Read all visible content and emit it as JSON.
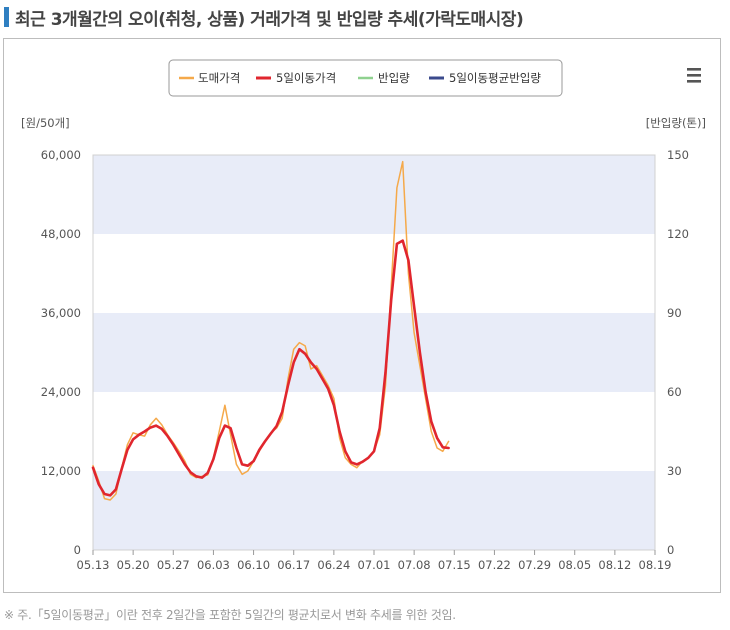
{
  "page": {
    "title": "최근 3개월간의 오이(취청, 상품) 거래가격 및 반입량 추세(가락도매시장)",
    "footnote": "※ 주.「5일이동평균」이란 전후 2일간을 포함한 5일간의 평균치로서 변화 추세를 위한 것임.",
    "menu_icon": "hamburger-menu-icon"
  },
  "chart_data": {
    "type": "line",
    "legend": [
      {
        "name": "도매가격",
        "color": "#f5a94a"
      },
      {
        "name": "5일이동가격",
        "color": "#e0262e"
      },
      {
        "name": "반입량",
        "color": "#8fd18f"
      },
      {
        "name": "5일이동평균반입량",
        "color": "#3b4a8c"
      }
    ],
    "legend_position": "top-center",
    "y_left": {
      "label": "[원/50개]",
      "range": [
        0,
        60000
      ],
      "ticks": [
        "0",
        "12,000",
        "24,000",
        "36,000",
        "48,000",
        "60,000"
      ]
    },
    "y_right": {
      "label": "[반입량(톤)]",
      "range": [
        0,
        150
      ],
      "ticks": [
        "0",
        "30",
        "60",
        "90",
        "120",
        "150"
      ]
    },
    "x_ticks": [
      "05.13",
      "05.20",
      "05.27",
      "06.03",
      "06.10",
      "06.17",
      "06.24",
      "07.01",
      "07.08",
      "07.15",
      "07.22",
      "07.29",
      "08.05",
      "08.12",
      "08.19"
    ],
    "band_color": "#e8ecf8",
    "series": [
      {
        "name": "도매가격",
        "color": "#f5a94a",
        "points": [
          [
            0,
            12800
          ],
          [
            1,
            10500
          ],
          [
            2,
            7800
          ],
          [
            3,
            7600
          ],
          [
            4,
            8500
          ],
          [
            5,
            12500
          ],
          [
            6,
            16000
          ],
          [
            7,
            17800
          ],
          [
            8,
            17500
          ],
          [
            9,
            17300
          ],
          [
            10,
            19000
          ],
          [
            11,
            20000
          ],
          [
            12,
            19000
          ],
          [
            13,
            17500
          ],
          [
            14,
            16300
          ],
          [
            15,
            15000
          ],
          [
            16,
            13500
          ],
          [
            17,
            11500
          ],
          [
            18,
            11000
          ],
          [
            19,
            11200
          ],
          [
            20,
            11400
          ],
          [
            21,
            14000
          ],
          [
            22,
            18000
          ],
          [
            23,
            22000
          ],
          [
            24,
            17500
          ],
          [
            25,
            13000
          ],
          [
            26,
            11500
          ],
          [
            27,
            12000
          ],
          [
            28,
            13500
          ],
          [
            29,
            15000
          ],
          [
            30,
            16500
          ],
          [
            31,
            17800
          ],
          [
            32,
            18500
          ],
          [
            33,
            20000
          ],
          [
            34,
            26000
          ],
          [
            35,
            30500
          ],
          [
            36,
            31500
          ],
          [
            37,
            31000
          ],
          [
            38,
            27500
          ],
          [
            39,
            28000
          ],
          [
            40,
            26500
          ],
          [
            41,
            25000
          ],
          [
            42,
            23000
          ],
          [
            43,
            17000
          ],
          [
            44,
            14000
          ],
          [
            45,
            13000
          ],
          [
            46,
            12500
          ],
          [
            47,
            13500
          ],
          [
            48,
            14000
          ],
          [
            49,
            15000
          ],
          [
            50,
            17500
          ],
          [
            51,
            25000
          ],
          [
            52,
            40000
          ],
          [
            53,
            55000
          ],
          [
            54,
            59000
          ],
          [
            55,
            42000
          ],
          [
            56,
            33000
          ],
          [
            57,
            28000
          ],
          [
            58,
            23000
          ],
          [
            59,
            18000
          ],
          [
            60,
            15500
          ],
          [
            61,
            15000
          ],
          [
            62,
            16500
          ]
        ]
      },
      {
        "name": "5일이동가격",
        "color": "#e0262e",
        "points": [
          [
            0,
            12500
          ],
          [
            1,
            10000
          ],
          [
            2,
            8500
          ],
          [
            3,
            8300
          ],
          [
            4,
            9200
          ],
          [
            5,
            12300
          ],
          [
            6,
            15200
          ],
          [
            7,
            16800
          ],
          [
            8,
            17500
          ],
          [
            9,
            18000
          ],
          [
            10,
            18600
          ],
          [
            11,
            18900
          ],
          [
            12,
            18400
          ],
          [
            13,
            17300
          ],
          [
            14,
            16000
          ],
          [
            15,
            14500
          ],
          [
            16,
            13000
          ],
          [
            17,
            11800
          ],
          [
            18,
            11200
          ],
          [
            19,
            11000
          ],
          [
            20,
            11700
          ],
          [
            21,
            13800
          ],
          [
            22,
            17000
          ],
          [
            23,
            18900
          ],
          [
            24,
            18500
          ],
          [
            25,
            15500
          ],
          [
            26,
            13000
          ],
          [
            27,
            12800
          ],
          [
            28,
            13500
          ],
          [
            29,
            15200
          ],
          [
            30,
            16500
          ],
          [
            31,
            17700
          ],
          [
            32,
            18800
          ],
          [
            33,
            21000
          ],
          [
            34,
            25000
          ],
          [
            35,
            28500
          ],
          [
            36,
            30500
          ],
          [
            37,
            29800
          ],
          [
            38,
            28500
          ],
          [
            39,
            27500
          ],
          [
            40,
            26000
          ],
          [
            41,
            24500
          ],
          [
            42,
            22000
          ],
          [
            43,
            18000
          ],
          [
            44,
            15000
          ],
          [
            45,
            13300
          ],
          [
            46,
            13000
          ],
          [
            47,
            13400
          ],
          [
            48,
            14000
          ],
          [
            49,
            15000
          ],
          [
            50,
            18500
          ],
          [
            51,
            27000
          ],
          [
            52,
            38000
          ],
          [
            53,
            46500
          ],
          [
            54,
            47000
          ],
          [
            55,
            44000
          ],
          [
            56,
            37000
          ],
          [
            57,
            30000
          ],
          [
            58,
            24000
          ],
          [
            59,
            19500
          ],
          [
            60,
            17000
          ],
          [
            61,
            15600
          ],
          [
            62,
            15500
          ]
        ]
      }
    ]
  }
}
